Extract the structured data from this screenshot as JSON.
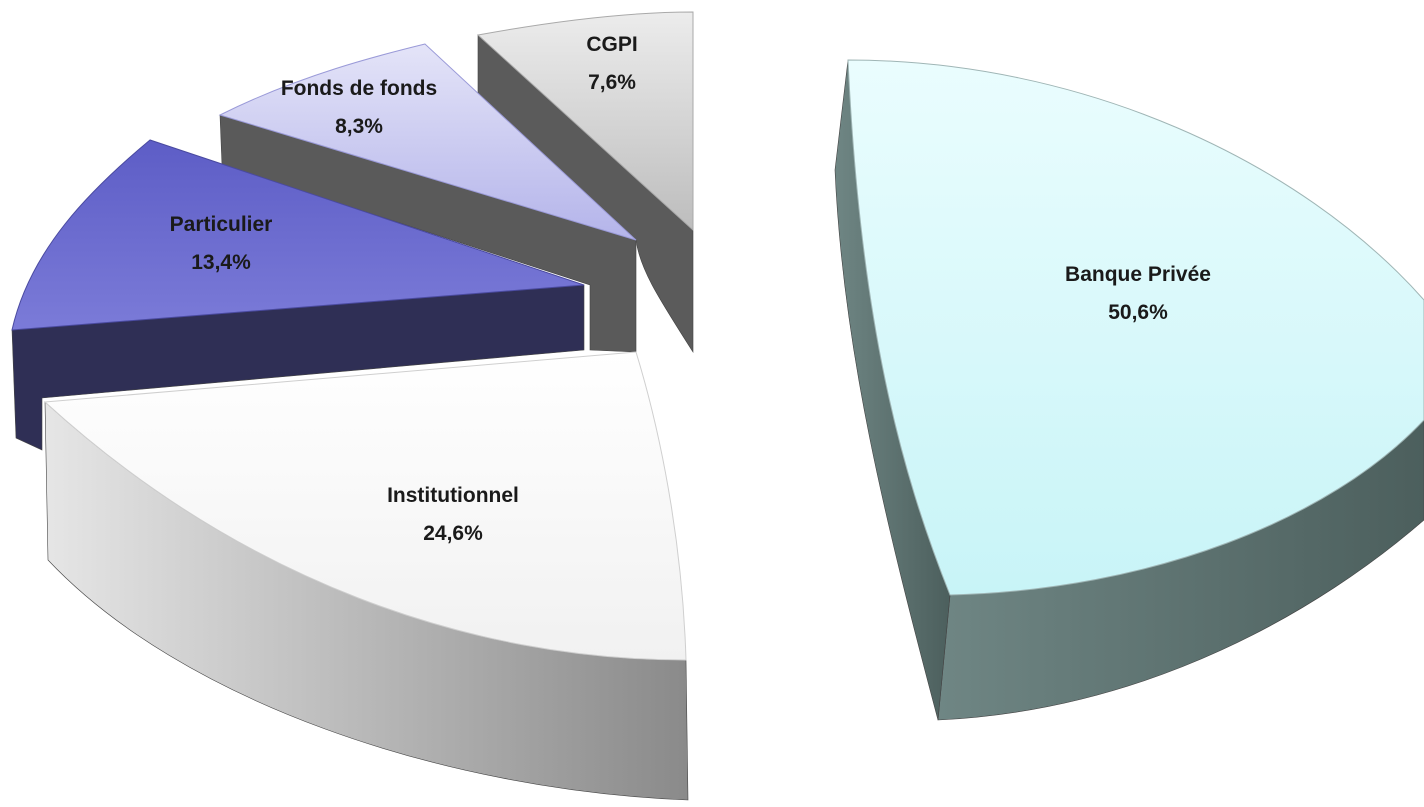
{
  "chart_data": {
    "type": "pie",
    "style": "3d-exploded",
    "slices": [
      {
        "label": "Banque Privée",
        "value_label": "50,6%",
        "value": 50.6,
        "color": "#d4fafc",
        "side_color": "#5f7572"
      },
      {
        "label": "Institutionnel",
        "value_label": "24,6%",
        "value": 24.6,
        "color": "#f4f4f4",
        "side_color": "#9a9a9a"
      },
      {
        "label": "Particulier",
        "value_label": "13,4%",
        "value": 13.4,
        "color": "#6e6ed0",
        "side_color": "#2e2e52"
      },
      {
        "label": "Fonds de fonds",
        "value_label": "8,3%",
        "value": 8.3,
        "color": "#c4c4f0",
        "side_color": "#5c5c5c"
      },
      {
        "label": "CGPI",
        "value_label": "7,6%",
        "value": 7.6,
        "color": "#d0d0d0",
        "side_color": "#5a5a5a"
      }
    ]
  }
}
